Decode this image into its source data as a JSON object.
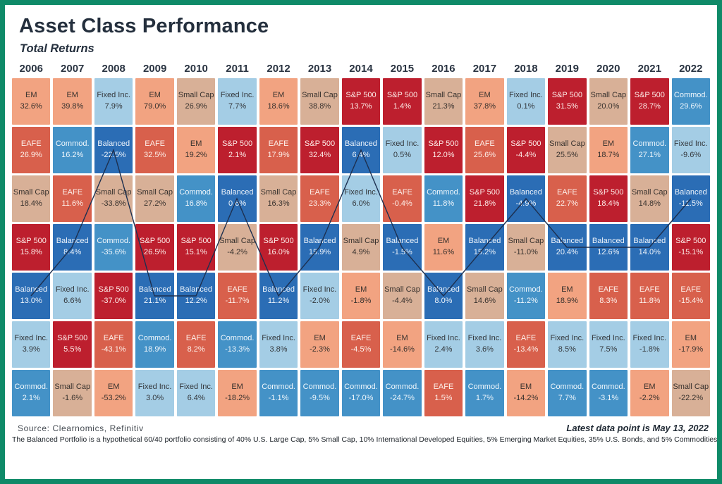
{
  "header": {
    "title": "Asset Class Performance",
    "subtitle": "Total Returns"
  },
  "footer": {
    "source": "Source: Clearnomics, Refinitiv",
    "latest": "Latest data point is May 13, 2022",
    "disclaimer": "The Balanced Portfolio is a hypothetical 60/40 portfolio consisting of 40% U.S. Large Cap, 5% Small Cap, 10% International Developed Equities, 5% Emerging Market Equities, 35% U.S. Bonds, and 5% Commodities."
  },
  "frame_border_color": "#0f8a68",
  "line_color": "#1d3050",
  "asset_colors": {
    "EM": {
      "bg": "#F2A381",
      "text": "#38322e"
    },
    "EAFE": {
      "bg": "#D8604C",
      "text": "#fdf0ea"
    },
    "Small Cap": {
      "bg": "#D8B097",
      "text": "#38322e"
    },
    "S&P 500": {
      "bg": "#BD1F2E",
      "text": "#fdece8"
    },
    "Balanced": {
      "bg": "#2B6DB5",
      "text": "#eef4fb"
    },
    "Fixed Inc.": {
      "bg": "#A4CDE5",
      "text": "#33373b"
    },
    "Commod.": {
      "bg": "#4492C7",
      "text": "#f0f7fc"
    }
  },
  "chart_data": {
    "type": "heatmap",
    "title": "Asset Class Performance",
    "subtitle": "Total Returns",
    "legend_entries": [
      "EM",
      "EAFE",
      "Small Cap",
      "S&P 500",
      "Balanced",
      "Fixed Inc.",
      "Commod."
    ],
    "layout": "ranked quilt: each column is a year, cells sorted best-to-worst return top-to-bottom; navy line traces the Balanced portfolio rank",
    "columns": [
      {
        "year": "2006",
        "cells": [
          {
            "label": "EM",
            "value": "32.6%"
          },
          {
            "label": "EAFE",
            "value": "26.9%"
          },
          {
            "label": "Small Cap",
            "value": "18.4%"
          },
          {
            "label": "S&P 500",
            "value": "15.8%"
          },
          {
            "label": "Balanced",
            "value": "13.0%"
          },
          {
            "label": "Fixed Inc.",
            "value": "3.9%"
          },
          {
            "label": "Commod.",
            "value": "2.1%"
          }
        ]
      },
      {
        "year": "2007",
        "cells": [
          {
            "label": "EM",
            "value": "39.8%"
          },
          {
            "label": "Commod.",
            "value": "16.2%"
          },
          {
            "label": "EAFE",
            "value": "11.6%"
          },
          {
            "label": "Balanced",
            "value": "8.4%"
          },
          {
            "label": "Fixed Inc.",
            "value": "6.6%"
          },
          {
            "label": "S&P 500",
            "value": "5.5%"
          },
          {
            "label": "Small Cap",
            "value": "-1.6%"
          }
        ]
      },
      {
        "year": "2008",
        "cells": [
          {
            "label": "Fixed Inc.",
            "value": "7.9%"
          },
          {
            "label": "Balanced",
            "value": "-22.5%"
          },
          {
            "label": "Small Cap",
            "value": "-33.8%"
          },
          {
            "label": "Commod.",
            "value": "-35.6%"
          },
          {
            "label": "S&P 500",
            "value": "-37.0%"
          },
          {
            "label": "EAFE",
            "value": "-43.1%"
          },
          {
            "label": "EM",
            "value": "-53.2%"
          }
        ]
      },
      {
        "year": "2009",
        "cells": [
          {
            "label": "EM",
            "value": "79.0%"
          },
          {
            "label": "EAFE",
            "value": "32.5%"
          },
          {
            "label": "Small Cap",
            "value": "27.2%"
          },
          {
            "label": "S&P 500",
            "value": "26.5%"
          },
          {
            "label": "Balanced",
            "value": "21.1%"
          },
          {
            "label": "Commod.",
            "value": "18.9%"
          },
          {
            "label": "Fixed Inc.",
            "value": "3.0%"
          }
        ]
      },
      {
        "year": "2010",
        "cells": [
          {
            "label": "Small Cap",
            "value": "26.9%"
          },
          {
            "label": "EM",
            "value": "19.2%"
          },
          {
            "label": "Commod.",
            "value": "16.8%"
          },
          {
            "label": "S&P 500",
            "value": "15.1%"
          },
          {
            "label": "Balanced",
            "value": "12.2%"
          },
          {
            "label": "EAFE",
            "value": "8.2%"
          },
          {
            "label": "Fixed Inc.",
            "value": "6.4%"
          }
        ]
      },
      {
        "year": "2011",
        "cells": [
          {
            "label": "Fixed Inc.",
            "value": "7.7%"
          },
          {
            "label": "S&P 500",
            "value": "2.1%"
          },
          {
            "label": "Balanced",
            "value": "0.6%"
          },
          {
            "label": "Small Cap",
            "value": "-4.2%"
          },
          {
            "label": "EAFE",
            "value": "-11.7%"
          },
          {
            "label": "Commod.",
            "value": "-13.3%"
          },
          {
            "label": "EM",
            "value": "-18.2%"
          }
        ]
      },
      {
        "year": "2012",
        "cells": [
          {
            "label": "EM",
            "value": "18.6%"
          },
          {
            "label": "EAFE",
            "value": "17.9%"
          },
          {
            "label": "Small Cap",
            "value": "16.3%"
          },
          {
            "label": "S&P 500",
            "value": "16.0%"
          },
          {
            "label": "Balanced",
            "value": "11.2%"
          },
          {
            "label": "Fixed Inc.",
            "value": "3.8%"
          },
          {
            "label": "Commod.",
            "value": "-1.1%"
          }
        ]
      },
      {
        "year": "2013",
        "cells": [
          {
            "label": "Small Cap",
            "value": "38.8%"
          },
          {
            "label": "S&P 500",
            "value": "32.4%"
          },
          {
            "label": "EAFE",
            "value": "23.3%"
          },
          {
            "label": "Balanced",
            "value": "15.9%"
          },
          {
            "label": "Fixed Inc.",
            "value": "-2.0%"
          },
          {
            "label": "EM",
            "value": "-2.3%"
          },
          {
            "label": "Commod.",
            "value": "-9.5%"
          }
        ]
      },
      {
        "year": "2014",
        "cells": [
          {
            "label": "S&P 500",
            "value": "13.7%"
          },
          {
            "label": "Balanced",
            "value": "6.4%"
          },
          {
            "label": "Fixed Inc.",
            "value": "6.0%"
          },
          {
            "label": "Small Cap",
            "value": "4.9%"
          },
          {
            "label": "EM",
            "value": "-1.8%"
          },
          {
            "label": "EAFE",
            "value": "-4.5%"
          },
          {
            "label": "Commod.",
            "value": "-17.0%"
          }
        ]
      },
      {
        "year": "2015",
        "cells": [
          {
            "label": "S&P 500",
            "value": "1.4%"
          },
          {
            "label": "Fixed Inc.",
            "value": "0.5%"
          },
          {
            "label": "EAFE",
            "value": "-0.4%"
          },
          {
            "label": "Balanced",
            "value": "-1.5%"
          },
          {
            "label": "Small Cap",
            "value": "-4.4%"
          },
          {
            "label": "EM",
            "value": "-14.6%"
          },
          {
            "label": "Commod.",
            "value": "-24.7%"
          }
        ]
      },
      {
        "year": "2016",
        "cells": [
          {
            "label": "Small Cap",
            "value": "21.3%"
          },
          {
            "label": "S&P 500",
            "value": "12.0%"
          },
          {
            "label": "Commod.",
            "value": "11.8%"
          },
          {
            "label": "EM",
            "value": "11.6%"
          },
          {
            "label": "Balanced",
            "value": "8.0%"
          },
          {
            "label": "Fixed Inc.",
            "value": "2.4%"
          },
          {
            "label": "EAFE",
            "value": "1.5%"
          }
        ]
      },
      {
        "year": "2017",
        "cells": [
          {
            "label": "EM",
            "value": "37.8%"
          },
          {
            "label": "EAFE",
            "value": "25.6%"
          },
          {
            "label": "S&P 500",
            "value": "21.8%"
          },
          {
            "label": "Balanced",
            "value": "15.2%"
          },
          {
            "label": "Small Cap",
            "value": "14.6%"
          },
          {
            "label": "Fixed Inc.",
            "value": "3.6%"
          },
          {
            "label": "Commod.",
            "value": "1.7%"
          }
        ]
      },
      {
        "year": "2018",
        "cells": [
          {
            "label": "Fixed Inc.",
            "value": "0.1%"
          },
          {
            "label": "S&P 500",
            "value": "-4.4%"
          },
          {
            "label": "Balanced",
            "value": "-4.9%"
          },
          {
            "label": "Small Cap",
            "value": "-11.0%"
          },
          {
            "label": "Commod.",
            "value": "-11.2%"
          },
          {
            "label": "EAFE",
            "value": "-13.4%"
          },
          {
            "label": "EM",
            "value": "-14.2%"
          }
        ]
      },
      {
        "year": "2019",
        "cells": [
          {
            "label": "S&P 500",
            "value": "31.5%"
          },
          {
            "label": "Small Cap",
            "value": "25.5%"
          },
          {
            "label": "EAFE",
            "value": "22.7%"
          },
          {
            "label": "Balanced",
            "value": "20.4%"
          },
          {
            "label": "EM",
            "value": "18.9%"
          },
          {
            "label": "Fixed Inc.",
            "value": "8.5%"
          },
          {
            "label": "Commod.",
            "value": "7.7%"
          }
        ]
      },
      {
        "year": "2020",
        "cells": [
          {
            "label": "Small Cap",
            "value": "20.0%"
          },
          {
            "label": "EM",
            "value": "18.7%"
          },
          {
            "label": "S&P 500",
            "value": "18.4%"
          },
          {
            "label": "Balanced",
            "value": "12.6%"
          },
          {
            "label": "EAFE",
            "value": "8.3%"
          },
          {
            "label": "Fixed Inc.",
            "value": "7.5%"
          },
          {
            "label": "Commod.",
            "value": "-3.1%"
          }
        ]
      },
      {
        "year": "2021",
        "cells": [
          {
            "label": "S&P 500",
            "value": "28.7%"
          },
          {
            "label": "Commod.",
            "value": "27.1%"
          },
          {
            "label": "Small Cap",
            "value": "14.8%"
          },
          {
            "label": "Balanced",
            "value": "14.0%"
          },
          {
            "label": "EAFE",
            "value": "11.8%"
          },
          {
            "label": "Fixed Inc.",
            "value": "-1.8%"
          },
          {
            "label": "EM",
            "value": "-2.2%"
          }
        ]
      },
      {
        "year": "2022",
        "cells": [
          {
            "label": "Commod.",
            "value": "29.6%"
          },
          {
            "label": "Fixed Inc.",
            "value": "-9.6%"
          },
          {
            "label": "Balanced",
            "value": "-11.5%"
          },
          {
            "label": "S&P 500",
            "value": "-15.1%"
          },
          {
            "label": "EAFE",
            "value": "-15.4%"
          },
          {
            "label": "EM",
            "value": "-17.9%"
          },
          {
            "label": "Small Cap",
            "value": "-22.2%"
          }
        ]
      }
    ]
  }
}
